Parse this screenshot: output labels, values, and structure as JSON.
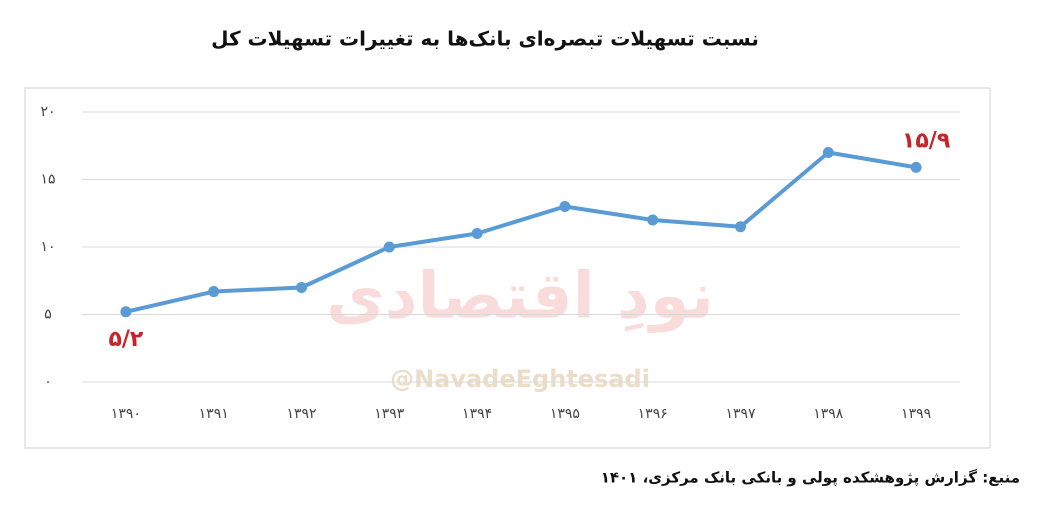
{
  "chart_data": {
    "type": "line",
    "title": "نسبت تسهیلات تبصره‌ای بانک‌ها به تغییرات تسهیلات کل",
    "categories": [
      "۱۳۹۰",
      "۱۳۹۱",
      "۱۳۹۲",
      "۱۳۹۳",
      "۱۳۹۴",
      "۱۳۹۵",
      "۱۳۹۶",
      "۱۳۹۷",
      "۱۳۹۸",
      "۱۳۹۹"
    ],
    "values": [
      5.2,
      6.7,
      7.0,
      10.0,
      11.0,
      13.0,
      12.0,
      11.5,
      17.0,
      15.9
    ],
    "value_labels": [
      "۵/۲",
      null,
      null,
      null,
      null,
      null,
      null,
      null,
      null,
      "۱۵/۹"
    ],
    "color": "#5b9bd5",
    "label_color": "#c8232c",
    "ylim": [
      0,
      20
    ],
    "yticks": [
      {
        "value": 0,
        "label": "۰"
      },
      {
        "value": 5,
        "label": "۵"
      },
      {
        "value": 10,
        "label": "۱۰"
      },
      {
        "value": 15,
        "label": "۱۵"
      },
      {
        "value": 20,
        "label": "۲۰"
      }
    ],
    "grid": true,
    "watermark": [
      "نودِ اقتصادی",
      "@NavadeEghtesadi"
    ],
    "source": "منبع: گزارش پژوهشکده پولی و بانکی بانک مرکزی، ۱۴۰۱"
  }
}
